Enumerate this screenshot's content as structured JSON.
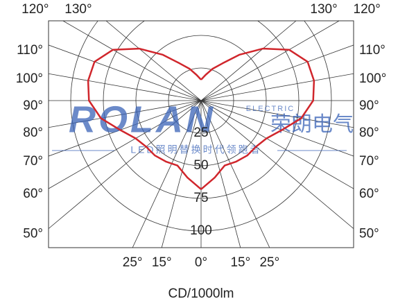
{
  "chart_data": {
    "type": "polar",
    "x_label": "CD/1000lm",
    "watermark": {
      "brand": "ROLAN",
      "sub": "ELECTRIC",
      "cn": "荣朗电气",
      "slogan": "LED照明替换时代领跑者"
    },
    "x": [
      0,
      10,
      20,
      30,
      40,
      50,
      60,
      70,
      80,
      90,
      100,
      110,
      120,
      130,
      140,
      150,
      160,
      170,
      180
    ],
    "series": [
      {
        "color": "#d0262c",
        "values": [
          68,
          60,
          53,
          54,
          55,
          55,
          58,
          66,
          78,
          86,
          88,
          87,
          78,
          62,
          46,
          33,
          26,
          20,
          16
        ]
      }
    ],
    "rlim": [
      0,
      100
    ],
    "rticks": [
      25,
      50,
      75,
      100
    ],
    "angle_ticks": [
      {
        "value": 0,
        "label": "0°"
      },
      {
        "value": 15,
        "label": "15°"
      },
      {
        "value": 25,
        "label": "25°"
      },
      {
        "value": 50,
        "label": "50°"
      },
      {
        "value": 60,
        "label": "60°"
      },
      {
        "value": 70,
        "label": "70°"
      },
      {
        "value": 80,
        "label": "80°"
      },
      {
        "value": 90,
        "label": "90°"
      },
      {
        "value": 100,
        "label": "100°"
      },
      {
        "value": 110,
        "label": "110°"
      },
      {
        "value": 120,
        "label": "120°"
      },
      {
        "value": 130,
        "label": "130°"
      }
    ],
    "grid": true
  }
}
